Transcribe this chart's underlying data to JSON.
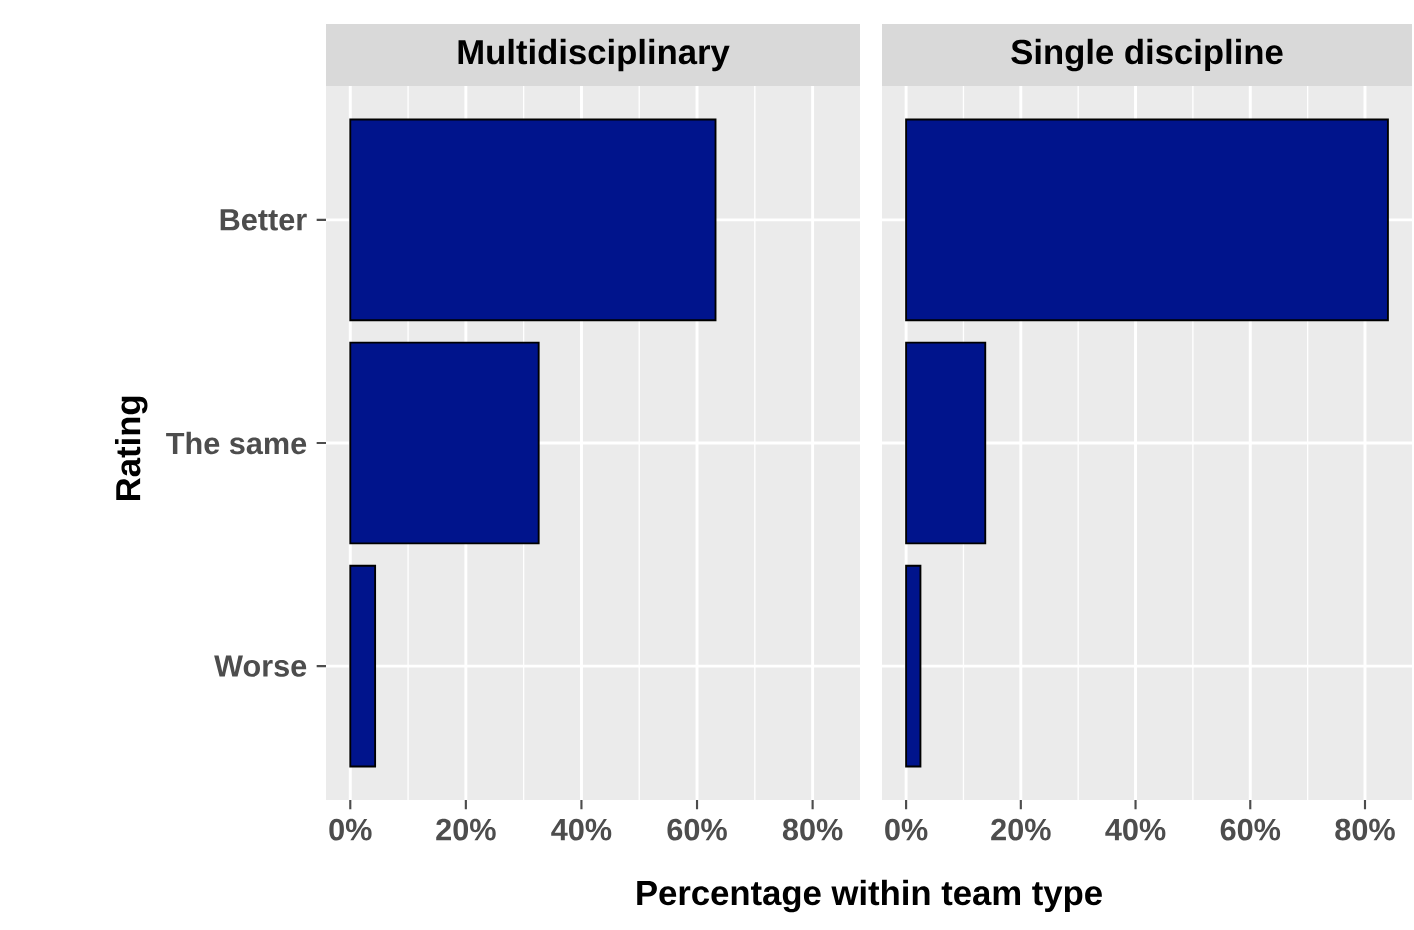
{
  "chart_data": [
    {
      "type": "bar",
      "orientation": "horizontal",
      "title": "Multidisciplinary",
      "xlabel": "Percentage within team type",
      "ylabel": "Rating",
      "categories": [
        "Better",
        "The same",
        "Worse"
      ],
      "values": [
        63.2,
        32.6,
        4.3
      ],
      "color": "#00148c",
      "xlim": [
        -4.2,
        88.2
      ],
      "xticks": [
        {
          "value": 0,
          "label": "0%"
        },
        {
          "value": 20,
          "label": "20%"
        },
        {
          "value": 40,
          "label": "40%"
        },
        {
          "value": 60,
          "label": "60%"
        },
        {
          "value": 80,
          "label": "80%"
        }
      ],
      "grid": true
    },
    {
      "type": "bar",
      "orientation": "horizontal",
      "title": "Single discipline",
      "categories": [
        null,
        null,
        null
      ],
      "values": [
        84.0,
        13.8,
        2.5
      ],
      "color": "#00148c",
      "xlim": [
        -4.2,
        88.2
      ],
      "xticks": [
        {
          "value": 0,
          "label": "0%"
        },
        {
          "value": 20,
          "label": "20%"
        },
        {
          "value": 40,
          "label": "40%"
        },
        {
          "value": 60,
          "label": "60%"
        },
        {
          "value": 80,
          "label": "80%"
        }
      ],
      "grid": true,
      "tick_labels": "x"
    }
  ]
}
